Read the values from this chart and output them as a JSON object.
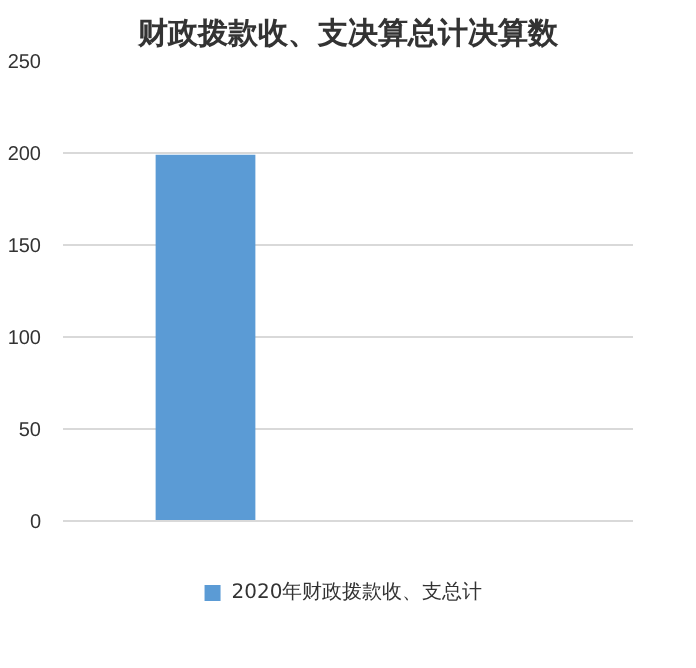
{
  "chart_data": {
    "type": "bar",
    "title": "财政拨款收、支决算总计决算数",
    "categories": [
      null,
      null
    ],
    "series": [
      {
        "name": "2020年财政拨款收、支总计",
        "color": "#5b9bd5",
        "values": [
          199,
          null
        ]
      }
    ],
    "ylim": [
      0,
      250
    ],
    "yticks": [
      0,
      50,
      100,
      150,
      200,
      250
    ],
    "grid": "y",
    "legend": "bottom"
  }
}
